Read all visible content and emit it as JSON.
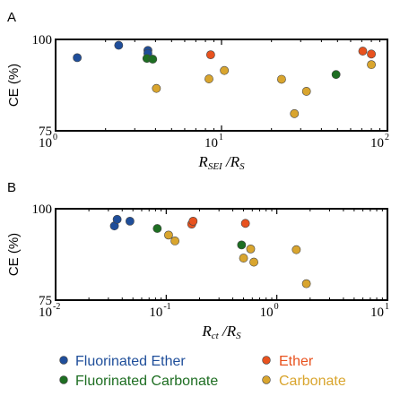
{
  "colors": {
    "fluorinated_ether": "#1f4e9a",
    "ether": "#e8521e",
    "fluorinated_carbonate": "#1e6e22",
    "carbonate": "#d9a52e"
  },
  "legend": [
    {
      "key": "fluorinated_ether",
      "label": "Fluorinated Ether"
    },
    {
      "key": "ether",
      "label": "Ether"
    },
    {
      "key": "fluorinated_carbonate",
      "label": "Fluorinated Carbonate"
    },
    {
      "key": "carbonate",
      "label": "Carbonate"
    }
  ],
  "chart_data": [
    {
      "panel": "A",
      "type": "scatter",
      "xscale": "log",
      "xlim": [
        1,
        100
      ],
      "ylim": [
        75,
        100
      ],
      "xlabel_main": "R",
      "xlabel_sub": "SEI",
      "xlabel_sep": " /",
      "xlabel_main2": "R",
      "xlabel_sub2": "S",
      "ylabel": "CE (%)",
      "xticks": [
        {
          "value": 1,
          "label": "10",
          "exp": "0"
        },
        {
          "value": 10,
          "label": "10",
          "exp": "1"
        },
        {
          "value": 100,
          "label": "10",
          "exp": "2"
        }
      ],
      "yticks": [
        {
          "value": 100,
          "label": "100"
        },
        {
          "value": 75,
          "label": "75"
        }
      ],
      "series": [
        {
          "key": "fluorinated_ether",
          "points": [
            [
              1.35,
              95
            ],
            [
              2.4,
              98.4
            ],
            [
              3.6,
              97
            ],
            [
              3.6,
              96.2
            ]
          ]
        },
        {
          "key": "fluorinated_carbonate",
          "points": [
            [
              3.55,
              94.8
            ],
            [
              3.85,
              94.6
            ]
          ]
        },
        {
          "key": "ether",
          "points": [
            [
              8.6,
              95.8
            ],
            [
              71,
              96.8
            ],
            [
              80,
              96
            ]
          ]
        },
        {
          "key": "carbonate",
          "points": [
            [
              4.05,
              86.6
            ],
            [
              8.4,
              89.2
            ],
            [
              10.4,
              91.5
            ],
            [
              23,
              89.1
            ],
            [
              27.5,
              79.7
            ],
            [
              32.5,
              85.8
            ],
            [
              80,
              93.1
            ]
          ]
        },
        {
          "key": "fluorinated_carbonate",
          "points": [
            [
              49,
              90.4
            ]
          ]
        }
      ]
    },
    {
      "panel": "B",
      "type": "scatter",
      "xscale": "log",
      "xlim": [
        0.01,
        10
      ],
      "ylim": [
        75,
        100
      ],
      "xlabel_main": "R",
      "xlabel_sub": "ct",
      "xlabel_sep": " /",
      "xlabel_main2": "R",
      "xlabel_sub2": "S",
      "ylabel": "CE (%)",
      "xticks": [
        {
          "value": 0.01,
          "label": "10",
          "exp": "-2"
        },
        {
          "value": 0.1,
          "label": "10",
          "exp": "-1"
        },
        {
          "value": 1,
          "label": "10",
          "exp": "0"
        },
        {
          "value": 10,
          "label": "10",
          "exp": "1"
        }
      ],
      "yticks": [
        {
          "value": 100,
          "label": "100"
        },
        {
          "value": 75,
          "label": "75"
        }
      ],
      "series": [
        {
          "key": "fluorinated_ether",
          "points": [
            [
              0.034,
              95.3
            ],
            [
              0.036,
              97.1
            ],
            [
              0.047,
              96.6
            ]
          ]
        },
        {
          "key": "fluorinated_carbonate",
          "points": [
            [
              0.083,
              94.6
            ],
            [
              0.48,
              90.1
            ]
          ]
        },
        {
          "key": "ether",
          "points": [
            [
              0.17,
              95.8
            ],
            [
              0.175,
              96.6
            ],
            [
              0.52,
              96
            ]
          ]
        },
        {
          "key": "carbonate",
          "points": [
            [
              0.105,
              92.8
            ],
            [
              0.12,
              91.2
            ],
            [
              0.5,
              86.5
            ],
            [
              0.58,
              89
            ],
            [
              0.62,
              85.4
            ],
            [
              1.5,
              88.8
            ],
            [
              1.85,
              79.5
            ]
          ]
        }
      ]
    }
  ]
}
